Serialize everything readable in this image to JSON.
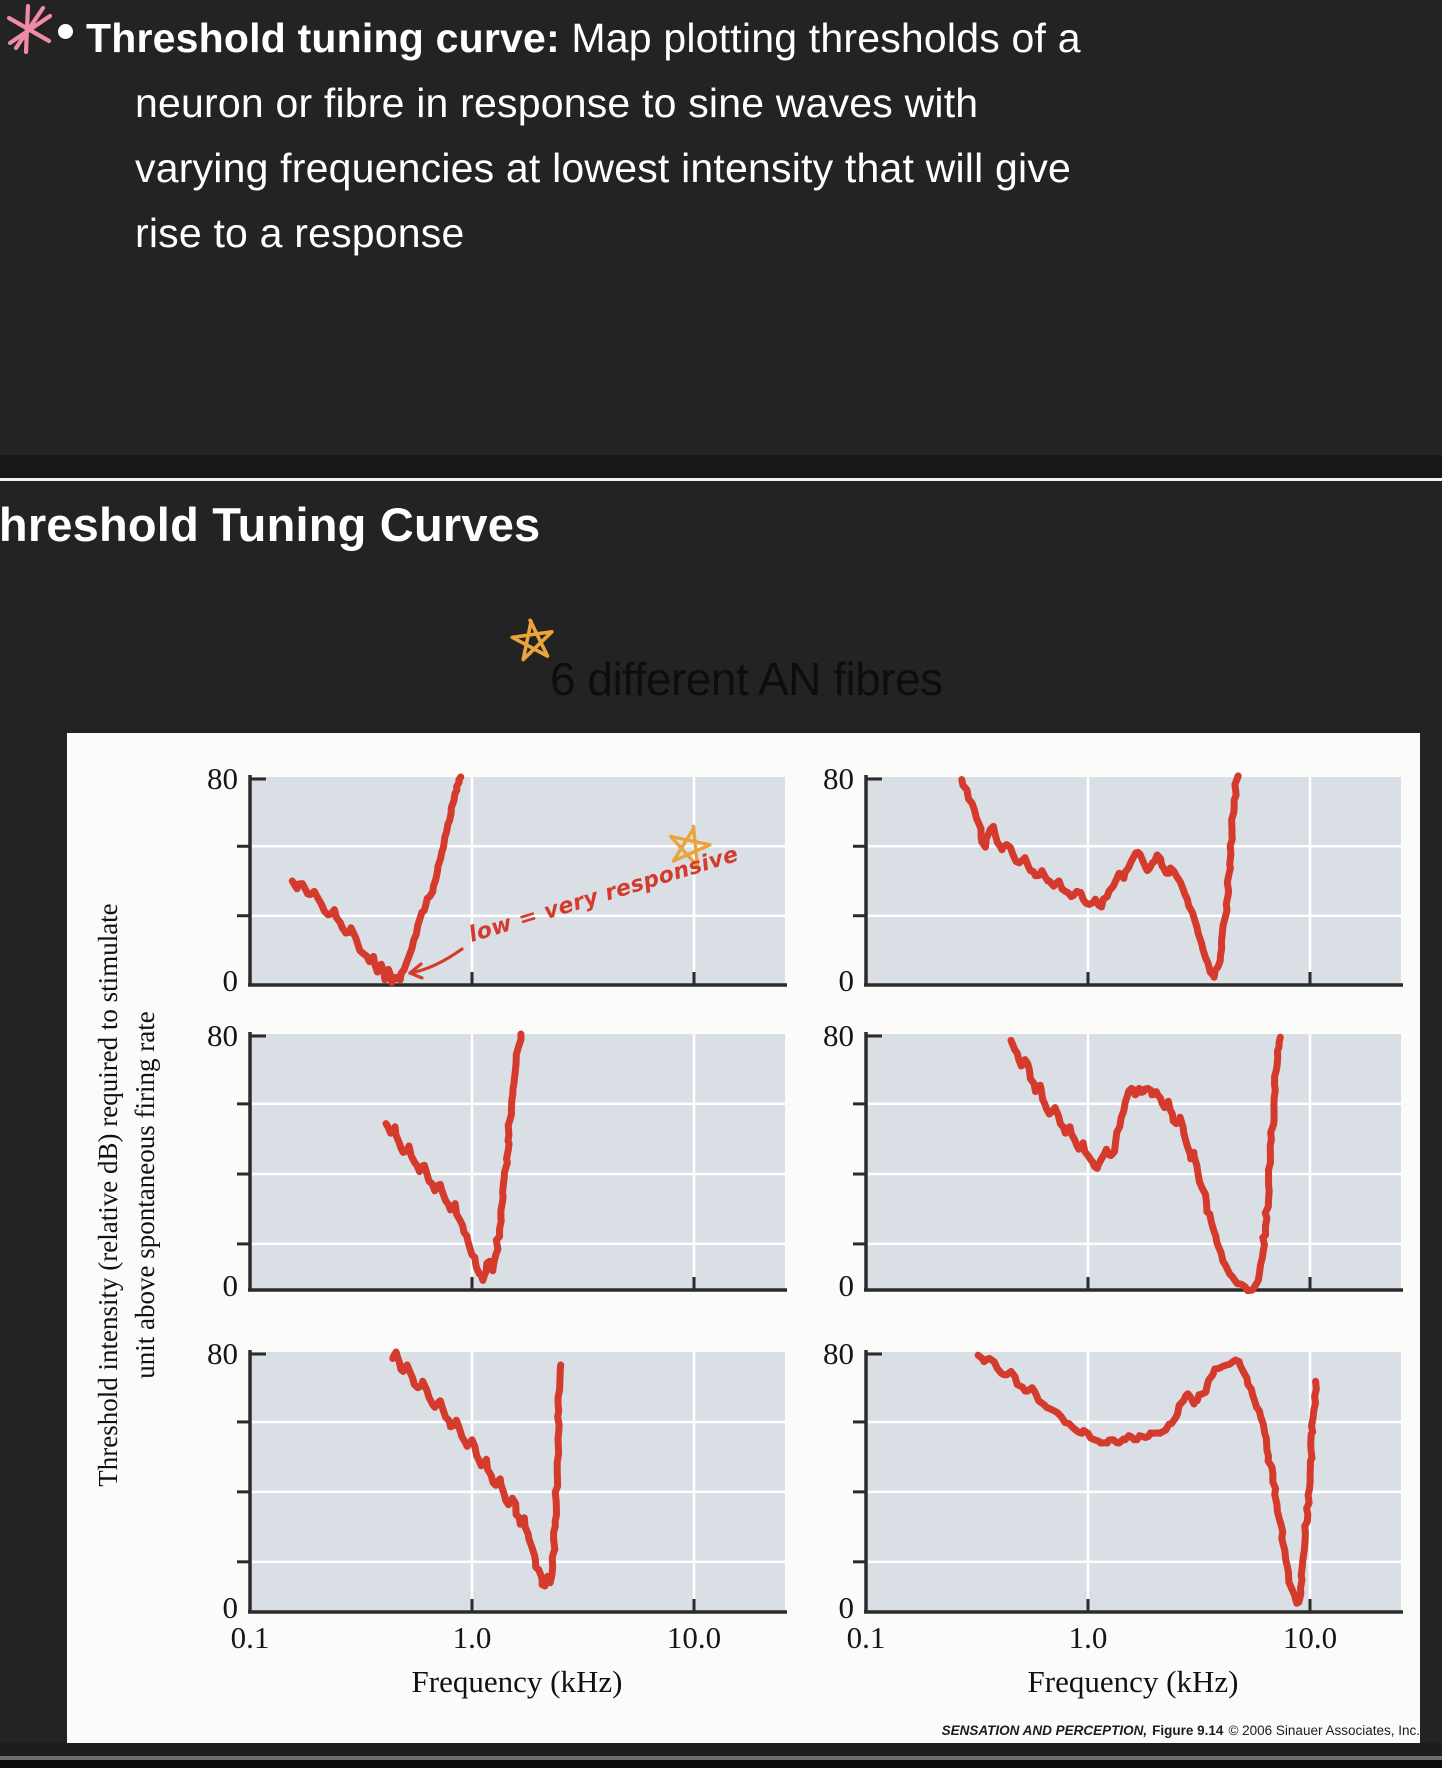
{
  "slide_top": {
    "bullet": "•",
    "line1_bold": "Threshold tuning curve:",
    "line1_rest": " Map plotting thresholds of a",
    "line2": "neuron or fibre in response to sine waves with",
    "line3": "varying frequencies at lowest intensity that will give",
    "line4": "rise to a response"
  },
  "slide_bottom": {
    "title": "Threshold Tuning Curves",
    "subtitle": "6 different AN fibres"
  },
  "figure": {
    "ylabel_line1": "Threshold intensity (relative dB) required to stimulate",
    "ylabel_line2": "unit above spontaneous firing rate",
    "xlabel": "Frequency (kHz)",
    "y_top_label": "80",
    "y_bottom_label": "0",
    "xtick_labels": [
      "0.1",
      "1.0",
      "10.0"
    ],
    "annotation": "low = very responsive",
    "citation": {
      "work": "SENSATION AND PERCEPTION,",
      "figure": "Figure 9.14",
      "copyright": "© 2006 Sinauer Associates, Inc."
    },
    "colors": {
      "curve": "#d43b2d",
      "panel_bg": "#d9dfe5",
      "grid": "#ffffff",
      "axis": "#2b2b2b",
      "figure_bg": "#fbfbf9",
      "annotation": "#d43b2d",
      "star": "#e9a43c",
      "asterisk": "#ef8ba2"
    }
  },
  "chart_data": {
    "type": "line",
    "title": "6 different AN fibres",
    "xlabel": "Frequency (kHz)",
    "ylabel": "Threshold intensity (relative dB) required to stimulate unit above spontaneous firing rate",
    "x_scale": "log",
    "x_ticks": [
      0.1,
      1,
      10
    ],
    "x_range": [
      0.1,
      26
    ],
    "ylim": [
      0,
      80
    ],
    "grid": true,
    "legend": "none",
    "panels": [
      {
        "name": "fiber-1-top-left",
        "row": 0,
        "col": 0,
        "points": [
          [
            0.155,
            40
          ],
          [
            0.163,
            37
          ],
          [
            0.172,
            39
          ],
          [
            0.182,
            35
          ],
          [
            0.195,
            36
          ],
          [
            0.21,
            31
          ],
          [
            0.225,
            27
          ],
          [
            0.24,
            29
          ],
          [
            0.255,
            24
          ],
          [
            0.27,
            20
          ],
          [
            0.285,
            22
          ],
          [
            0.305,
            16
          ],
          [
            0.325,
            12
          ],
          [
            0.345,
            9
          ],
          [
            0.36,
            11
          ],
          [
            0.375,
            5
          ],
          [
            0.39,
            8
          ],
          [
            0.405,
            2
          ],
          [
            0.42,
            6
          ],
          [
            0.435,
            1
          ],
          [
            0.455,
            3
          ],
          [
            0.475,
            2
          ],
          [
            0.495,
            6
          ],
          [
            0.52,
            11
          ],
          [
            0.545,
            17
          ],
          [
            0.57,
            23
          ],
          [
            0.595,
            28
          ],
          [
            0.62,
            31
          ],
          [
            0.645,
            34
          ],
          [
            0.67,
            38
          ],
          [
            0.7,
            44
          ],
          [
            0.73,
            51
          ],
          [
            0.755,
            57
          ],
          [
            0.78,
            62
          ],
          [
            0.805,
            66
          ],
          [
            0.83,
            71
          ],
          [
            0.855,
            75
          ],
          [
            0.875,
            78
          ],
          [
            0.89,
            80
          ]
        ]
      },
      {
        "name": "fiber-2-top-right",
        "row": 0,
        "col": 1,
        "points": [
          [
            0.27,
            79
          ],
          [
            0.285,
            75
          ],
          [
            0.3,
            70
          ],
          [
            0.315,
            64
          ],
          [
            0.33,
            57
          ],
          [
            0.345,
            53
          ],
          [
            0.36,
            59
          ],
          [
            0.375,
            61
          ],
          [
            0.39,
            55
          ],
          [
            0.41,
            52
          ],
          [
            0.43,
            54
          ],
          [
            0.46,
            50
          ],
          [
            0.49,
            47
          ],
          [
            0.52,
            49
          ],
          [
            0.55,
            44
          ],
          [
            0.58,
            42
          ],
          [
            0.62,
            44
          ],
          [
            0.66,
            40
          ],
          [
            0.7,
            38
          ],
          [
            0.74,
            40
          ],
          [
            0.79,
            36
          ],
          [
            0.84,
            34
          ],
          [
            0.89,
            36
          ],
          [
            0.95,
            33
          ],
          [
            1.01,
            31
          ],
          [
            1.08,
            33
          ],
          [
            1.15,
            30
          ],
          [
            1.22,
            34
          ],
          [
            1.3,
            38
          ],
          [
            1.38,
            43
          ],
          [
            1.45,
            41
          ],
          [
            1.52,
            45
          ],
          [
            1.6,
            49
          ],
          [
            1.68,
            51
          ],
          [
            1.76,
            48
          ],
          [
            1.85,
            44
          ],
          [
            1.95,
            47
          ],
          [
            2.05,
            50
          ],
          [
            2.15,
            46
          ],
          [
            2.25,
            43
          ],
          [
            2.35,
            45
          ],
          [
            2.5,
            42
          ],
          [
            2.65,
            38
          ],
          [
            2.8,
            33
          ],
          [
            2.95,
            28
          ],
          [
            3.1,
            22
          ],
          [
            3.25,
            16
          ],
          [
            3.4,
            10
          ],
          [
            3.55,
            5
          ],
          [
            3.7,
            3
          ],
          [
            3.85,
            7
          ],
          [
            4.0,
            14
          ],
          [
            4.15,
            26
          ],
          [
            4.3,
            42
          ],
          [
            4.45,
            58
          ],
          [
            4.55,
            68
          ],
          [
            4.62,
            75
          ],
          [
            4.68,
            79
          ],
          [
            4.72,
            80
          ]
        ]
      },
      {
        "name": "fiber-3-middle-left",
        "row": 1,
        "col": 0,
        "points": [
          [
            0.41,
            52
          ],
          [
            0.43,
            49
          ],
          [
            0.45,
            51
          ],
          [
            0.47,
            46
          ],
          [
            0.49,
            43
          ],
          [
            0.52,
            45
          ],
          [
            0.55,
            40
          ],
          [
            0.58,
            37
          ],
          [
            0.61,
            39
          ],
          [
            0.64,
            34
          ],
          [
            0.68,
            31
          ],
          [
            0.72,
            33
          ],
          [
            0.76,
            28
          ],
          [
            0.8,
            25
          ],
          [
            0.84,
            27
          ],
          [
            0.88,
            22
          ],
          [
            0.92,
            18
          ],
          [
            0.96,
            15
          ],
          [
            1.0,
            11
          ],
          [
            1.04,
            8
          ],
          [
            1.08,
            5
          ],
          [
            1.12,
            3
          ],
          [
            1.16,
            6
          ],
          [
            1.2,
            9
          ],
          [
            1.24,
            6
          ],
          [
            1.28,
            11
          ],
          [
            1.33,
            19
          ],
          [
            1.38,
            29
          ],
          [
            1.43,
            41
          ],
          [
            1.48,
            53
          ],
          [
            1.53,
            63
          ],
          [
            1.58,
            71
          ],
          [
            1.62,
            76
          ],
          [
            1.66,
            80
          ]
        ]
      },
      {
        "name": "fiber-4-middle-right",
        "row": 1,
        "col": 1,
        "points": [
          [
            0.45,
            78
          ],
          [
            0.48,
            74
          ],
          [
            0.5,
            70
          ],
          [
            0.52,
            72
          ],
          [
            0.55,
            66
          ],
          [
            0.58,
            62
          ],
          [
            0.61,
            64
          ],
          [
            0.64,
            58
          ],
          [
            0.67,
            55
          ],
          [
            0.71,
            57
          ],
          [
            0.75,
            52
          ],
          [
            0.79,
            49
          ],
          [
            0.83,
            51
          ],
          [
            0.87,
            47
          ],
          [
            0.91,
            44
          ],
          [
            0.95,
            46
          ],
          [
            1.0,
            42
          ],
          [
            1.05,
            40
          ],
          [
            1.1,
            38
          ],
          [
            1.15,
            41
          ],
          [
            1.21,
            44
          ],
          [
            1.27,
            42
          ],
          [
            1.33,
            46
          ],
          [
            1.39,
            51
          ],
          [
            1.45,
            56
          ],
          [
            1.51,
            61
          ],
          [
            1.57,
            63
          ],
          [
            1.63,
            61
          ],
          [
            1.7,
            63
          ],
          [
            1.78,
            62
          ],
          [
            1.86,
            63
          ],
          [
            1.94,
            61
          ],
          [
            2.03,
            62
          ],
          [
            2.12,
            60
          ],
          [
            2.21,
            57
          ],
          [
            2.3,
            59
          ],
          [
            2.4,
            55
          ],
          [
            2.5,
            52
          ],
          [
            2.6,
            54
          ],
          [
            2.7,
            49
          ],
          [
            2.8,
            45
          ],
          [
            2.9,
            41
          ],
          [
            3.0,
            43
          ],
          [
            3.12,
            37
          ],
          [
            3.26,
            32
          ],
          [
            3.42,
            27
          ],
          [
            3.6,
            21
          ],
          [
            3.8,
            15
          ],
          [
            4.05,
            9
          ],
          [
            4.35,
            5
          ],
          [
            4.7,
            2
          ],
          [
            5.1,
            1
          ],
          [
            5.5,
            0
          ],
          [
            5.85,
            3
          ],
          [
            6.1,
            10
          ],
          [
            6.3,
            20
          ],
          [
            6.5,
            33
          ],
          [
            6.7,
            47
          ],
          [
            6.9,
            60
          ],
          [
            7.1,
            70
          ],
          [
            7.25,
            76
          ],
          [
            7.35,
            79
          ]
        ]
      },
      {
        "name": "fiber-5-bottom-left",
        "row": 2,
        "col": 0,
        "points": [
          [
            0.44,
            78
          ],
          [
            0.455,
            80
          ],
          [
            0.47,
            77
          ],
          [
            0.49,
            74
          ],
          [
            0.51,
            76
          ],
          [
            0.54,
            72
          ],
          [
            0.57,
            69
          ],
          [
            0.6,
            71
          ],
          [
            0.64,
            66
          ],
          [
            0.68,
            63
          ],
          [
            0.72,
            65
          ],
          [
            0.76,
            60
          ],
          [
            0.8,
            57
          ],
          [
            0.85,
            59
          ],
          [
            0.9,
            54
          ],
          [
            0.95,
            51
          ],
          [
            1.0,
            53
          ],
          [
            1.05,
            48
          ],
          [
            1.1,
            45
          ],
          [
            1.16,
            47
          ],
          [
            1.22,
            42
          ],
          [
            1.28,
            39
          ],
          [
            1.34,
            41
          ],
          [
            1.4,
            36
          ],
          [
            1.46,
            33
          ],
          [
            1.52,
            35
          ],
          [
            1.58,
            30
          ],
          [
            1.65,
            27
          ],
          [
            1.72,
            29
          ],
          [
            1.79,
            24
          ],
          [
            1.86,
            20
          ],
          [
            1.93,
            16
          ],
          [
            2.0,
            13
          ],
          [
            2.07,
            10
          ],
          [
            2.13,
            8
          ],
          [
            2.19,
            11
          ],
          [
            2.25,
            9
          ],
          [
            2.31,
            14
          ],
          [
            2.37,
            28
          ],
          [
            2.42,
            46
          ],
          [
            2.46,
            62
          ],
          [
            2.49,
            72
          ],
          [
            2.51,
            76
          ]
        ]
      },
      {
        "name": "fiber-6-bottom-right",
        "row": 2,
        "col": 1,
        "points": [
          [
            0.32,
            79
          ],
          [
            0.34,
            77
          ],
          [
            0.36,
            78
          ],
          [
            0.39,
            75
          ],
          [
            0.42,
            73
          ],
          [
            0.45,
            74
          ],
          [
            0.48,
            70
          ],
          [
            0.52,
            68
          ],
          [
            0.56,
            69
          ],
          [
            0.6,
            65
          ],
          [
            0.65,
            63
          ],
          [
            0.7,
            62
          ],
          [
            0.76,
            60
          ],
          [
            0.82,
            58
          ],
          [
            0.88,
            56
          ],
          [
            0.94,
            55
          ],
          [
            1.0,
            55
          ],
          [
            1.07,
            53
          ],
          [
            1.14,
            52
          ],
          [
            1.22,
            52
          ],
          [
            1.3,
            53
          ],
          [
            1.38,
            52
          ],
          [
            1.47,
            53
          ],
          [
            1.56,
            54
          ],
          [
            1.66,
            53
          ],
          [
            1.76,
            54
          ],
          [
            1.87,
            54
          ],
          [
            1.99,
            55
          ],
          [
            2.11,
            55
          ],
          [
            2.24,
            56
          ],
          [
            2.38,
            58
          ],
          [
            2.53,
            61
          ],
          [
            2.69,
            65
          ],
          [
            2.8,
            67
          ],
          [
            2.9,
            66
          ],
          [
            3.0,
            64
          ],
          [
            3.1,
            65
          ],
          [
            3.25,
            67
          ],
          [
            3.45,
            70
          ],
          [
            3.65,
            73
          ],
          [
            3.9,
            75
          ],
          [
            4.2,
            76
          ],
          [
            4.5,
            77
          ],
          [
            4.8,
            77
          ],
          [
            5.0,
            74
          ],
          [
            5.25,
            70
          ],
          [
            5.5,
            67
          ],
          [
            5.75,
            63
          ],
          [
            6.0,
            60
          ],
          [
            6.25,
            55
          ],
          [
            6.5,
            48
          ],
          [
            6.8,
            40
          ],
          [
            7.1,
            33
          ],
          [
            7.4,
            27
          ],
          [
            7.7,
            19
          ],
          [
            8.0,
            12
          ],
          [
            8.3,
            7
          ],
          [
            8.6,
            4
          ],
          [
            8.9,
            3
          ],
          [
            9.2,
            10
          ],
          [
            9.5,
            22
          ],
          [
            9.8,
            36
          ],
          [
            10.1,
            50
          ],
          [
            10.4,
            62
          ],
          [
            10.6,
            71
          ]
        ]
      }
    ]
  }
}
